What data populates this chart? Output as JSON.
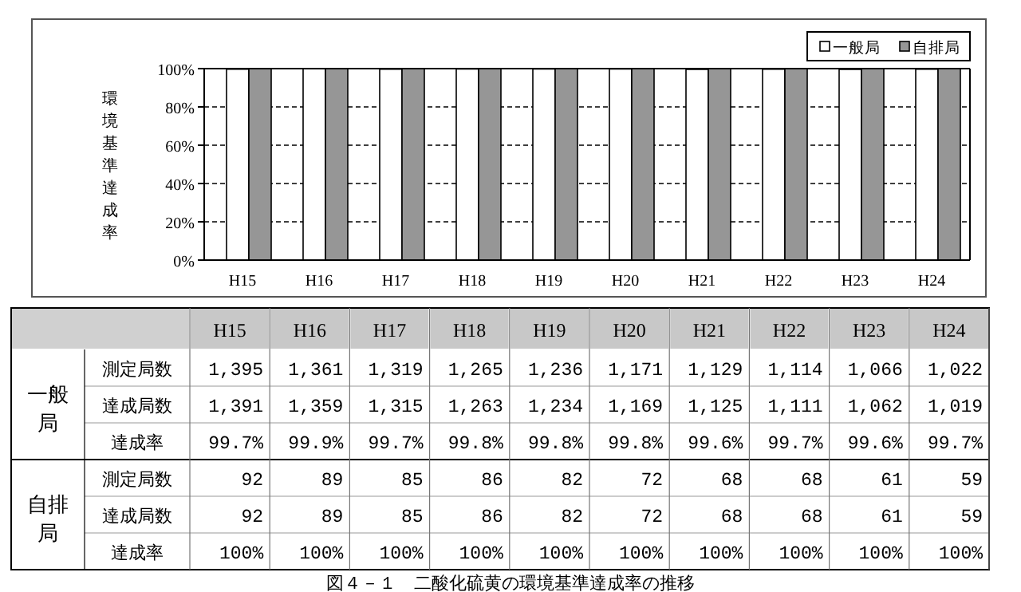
{
  "chart_data": [
    {
      "type": "bar",
      "ylabel": "環境基準達成率",
      "categories": [
        "H15",
        "H16",
        "H17",
        "H18",
        "H19",
        "H20",
        "H21",
        "H22",
        "H23",
        "H24"
      ],
      "series": [
        {
          "name": "一般局",
          "color": "#ffffff",
          "values": [
            99.7,
            99.9,
            99.7,
            99.8,
            99.8,
            99.8,
            99.6,
            99.7,
            99.6,
            99.7
          ]
        },
        {
          "name": "自排局",
          "color": "#969696",
          "values": [
            100,
            100,
            100,
            100,
            100,
            100,
            100,
            100,
            100,
            100
          ]
        }
      ],
      "ylim": [
        0,
        100
      ],
      "yticks": [
        {
          "value": 0,
          "label": "0%"
        },
        {
          "value": 20,
          "label": "20%"
        },
        {
          "value": 40,
          "label": "40%"
        },
        {
          "value": 60,
          "label": "60%"
        },
        {
          "value": 80,
          "label": "80%"
        },
        {
          "value": 100,
          "label": "100%"
        }
      ],
      "grid": "y",
      "legend": "top right"
    },
    {
      "type": "other",
      "categories": [
        "H15",
        "H16",
        "H17",
        "H18",
        "H19",
        "H20",
        "H21",
        "H22",
        "H23",
        "H24"
      ],
      "series": [
        {
          "name": "測定局数",
          "values": [
            1395,
            1361,
            1319,
            1265,
            1236,
            1171,
            1129,
            1114,
            1066,
            1022
          ],
          "value_labels": [
            "1,395",
            "1,361",
            "1,319",
            "1,265",
            "1,236",
            "1,171",
            "1,129",
            "1,114",
            "1,066",
            "1,022"
          ]
        },
        {
          "name": "達成局数",
          "values": [
            1391,
            1359,
            1315,
            1263,
            1234,
            1169,
            1125,
            1111,
            1062,
            1019
          ],
          "value_labels": [
            "1,391",
            "1,359",
            "1,315",
            "1,263",
            "1,234",
            "1,169",
            "1,125",
            "1,111",
            "1,062",
            "1,019"
          ]
        },
        {
          "name": "達成率",
          "values": [
            99.7,
            99.9,
            99.7,
            99.8,
            99.8,
            99.8,
            99.6,
            99.7,
            99.6,
            99.7
          ],
          "value_labels": [
            "99.7%",
            "99.9%",
            "99.7%",
            "99.8%",
            "99.8%",
            "99.8%",
            "99.6%",
            "99.7%",
            "99.6%",
            "99.7%"
          ]
        },
        {
          "name": "測定局数",
          "values": [
            92,
            89,
            85,
            86,
            82,
            72,
            68,
            68,
            61,
            59
          ],
          "value_labels": [
            "92",
            "89",
            "85",
            "86",
            "82",
            "72",
            "68",
            "68",
            "61",
            "59"
          ]
        },
        {
          "name": "達成局数",
          "values": [
            92,
            89,
            85,
            86,
            82,
            72,
            68,
            68,
            61,
            59
          ],
          "value_labels": [
            "92",
            "89",
            "85",
            "86",
            "82",
            "72",
            "68",
            "68",
            "61",
            "59"
          ]
        },
        {
          "name": "達成率",
          "values": [
            100,
            100,
            100,
            100,
            100,
            100,
            100,
            100,
            100,
            100
          ],
          "value_labels": [
            "100%",
            "100%",
            "100%",
            "100%",
            "100%",
            "100%",
            "100%",
            "100%",
            "100%",
            "100%"
          ]
        }
      ],
      "annotations": [
        "一般局",
        "自排局",
        "図４－１　二酸化硫黄の環境基準達成率の推移"
      ]
    }
  ]
}
